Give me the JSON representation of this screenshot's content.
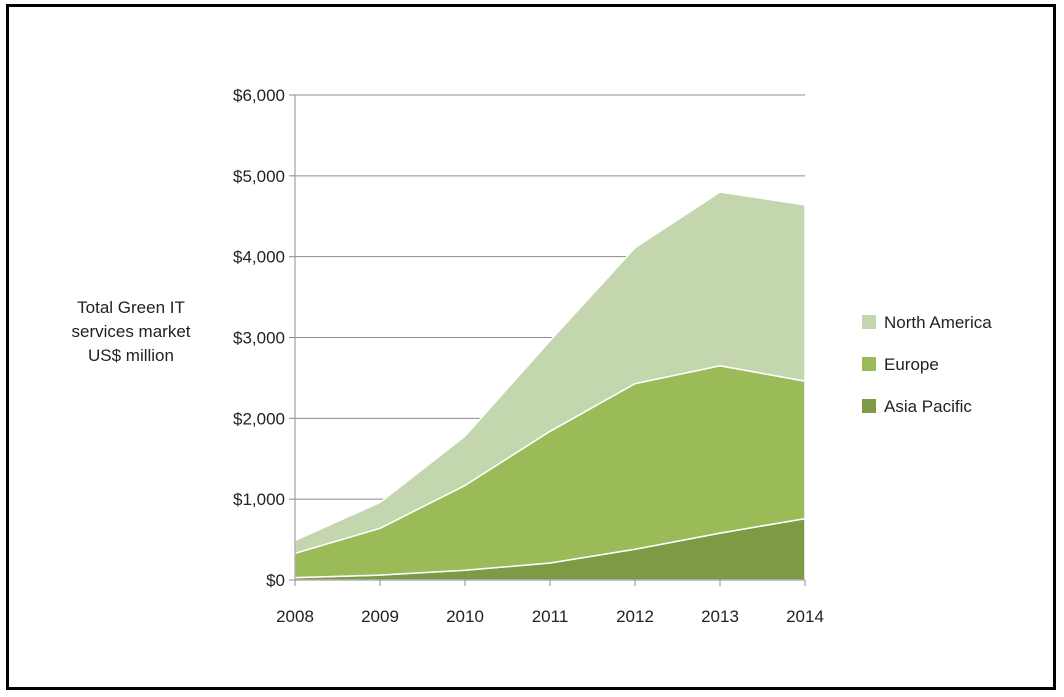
{
  "chart_data": {
    "type": "area",
    "stacked": true,
    "title": "",
    "xlabel": "",
    "ylabel": "Total Green IT services market US$ million",
    "ylabel_lines": [
      "Total Green IT",
      "services market",
      "US$ million"
    ],
    "x": [
      "2008",
      "2009",
      "2010",
      "2011",
      "2012",
      "2013",
      "2014"
    ],
    "ylim": [
      0,
      6000
    ],
    "yticks": [
      0,
      1000,
      2000,
      3000,
      4000,
      5000,
      6000
    ],
    "ytick_labels": [
      "$0",
      "$1,000",
      "$2,000",
      "$3,000",
      "$4,000",
      "$5,000",
      "$6,000"
    ],
    "grid": "horizontal",
    "legend_position": "right",
    "series": [
      {
        "name": "Asia Pacific",
        "color": "#7e9a45",
        "values": [
          30,
          60,
          120,
          210,
          380,
          580,
          760
        ]
      },
      {
        "name": "Europe",
        "color": "#9bbb59",
        "values": [
          300,
          580,
          1050,
          1630,
          2050,
          2070,
          1700
        ]
      },
      {
        "name": "North America",
        "color": "#c4d6ae",
        "values": [
          160,
          320,
          610,
          1120,
          1680,
          2150,
          2180
        ]
      }
    ],
    "legend_order": [
      "North America",
      "Europe",
      "Asia Pacific"
    ]
  }
}
